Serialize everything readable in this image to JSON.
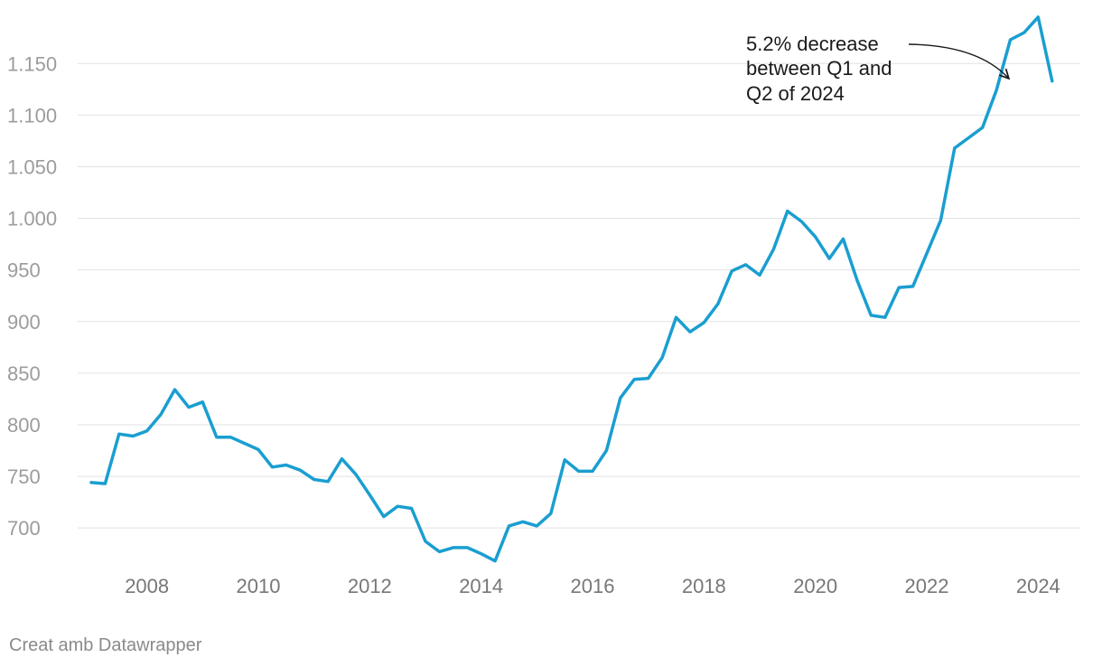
{
  "chart_data": {
    "type": "line",
    "title": "",
    "xlabel": "",
    "ylabel": "",
    "ylim": [
      666,
      1194
    ],
    "xlim": [
      2007.0,
      2025.0
    ],
    "yticks": [
      700,
      750,
      800,
      850,
      900,
      950,
      1000,
      1050,
      1100,
      1150
    ],
    "ytick_labels": [
      "700",
      "750",
      "800",
      "850",
      "900",
      "950",
      "1.000",
      "1.050",
      "1.100",
      "1.150"
    ],
    "xticks": [
      2008,
      2010,
      2012,
      2014,
      2016,
      2018,
      2020,
      2022,
      2024
    ],
    "xtick_labels": [
      "2008",
      "2010",
      "2012",
      "2014",
      "2016",
      "2018",
      "2020",
      "2022",
      "2024"
    ],
    "grid": true,
    "series": [
      {
        "color": "#1a9ed0",
        "x": [
          2007.0,
          2007.25,
          2007.5,
          2007.75,
          2008.0,
          2008.25,
          2008.5,
          2008.75,
          2009.0,
          2009.25,
          2009.5,
          2009.75,
          2010.0,
          2010.25,
          2010.5,
          2010.75,
          2011.0,
          2011.25,
          2011.5,
          2011.75,
          2012.0,
          2012.25,
          2012.5,
          2012.75,
          2013.0,
          2013.25,
          2013.5,
          2013.75,
          2014.0,
          2014.25,
          2014.5,
          2014.75,
          2015.0,
          2015.25,
          2015.5,
          2015.75,
          2016.0,
          2016.25,
          2016.5,
          2016.75,
          2017.0,
          2017.25,
          2017.5,
          2017.75,
          2018.0,
          2018.25,
          2018.5,
          2018.75,
          2019.0,
          2019.25,
          2019.5,
          2019.75,
          2020.0,
          2020.25,
          2020.5,
          2020.75,
          2021.0,
          2021.25,
          2021.5,
          2021.75,
          2022.0,
          2022.25,
          2022.5,
          2022.75,
          2023.0,
          2023.25,
          2023.5,
          2023.75,
          2024.0,
          2024.25
        ],
        "y": [
          744,
          743,
          791,
          789,
          794,
          810,
          834,
          817,
          822,
          788,
          788,
          782,
          776,
          759,
          761,
          756,
          747,
          745,
          767,
          752,
          732,
          711,
          721,
          719,
          687,
          677,
          681,
          681,
          675,
          668,
          702,
          706,
          702,
          714,
          766,
          755,
          755,
          775,
          826,
          844,
          845,
          865,
          904,
          890,
          899,
          917,
          949,
          955,
          945,
          970,
          1007,
          997,
          982,
          961,
          980,
          940,
          906,
          904,
          933,
          934,
          966,
          998,
          1068,
          1078,
          1088,
          1124,
          1173,
          1180,
          1195,
          1133
        ]
      }
    ],
    "annotations": [
      {
        "lines": [
          "5.2% decrease",
          "between Q1 and",
          "Q2 of 2024"
        ]
      }
    ]
  },
  "credit": "Creat amb Datawrapper"
}
